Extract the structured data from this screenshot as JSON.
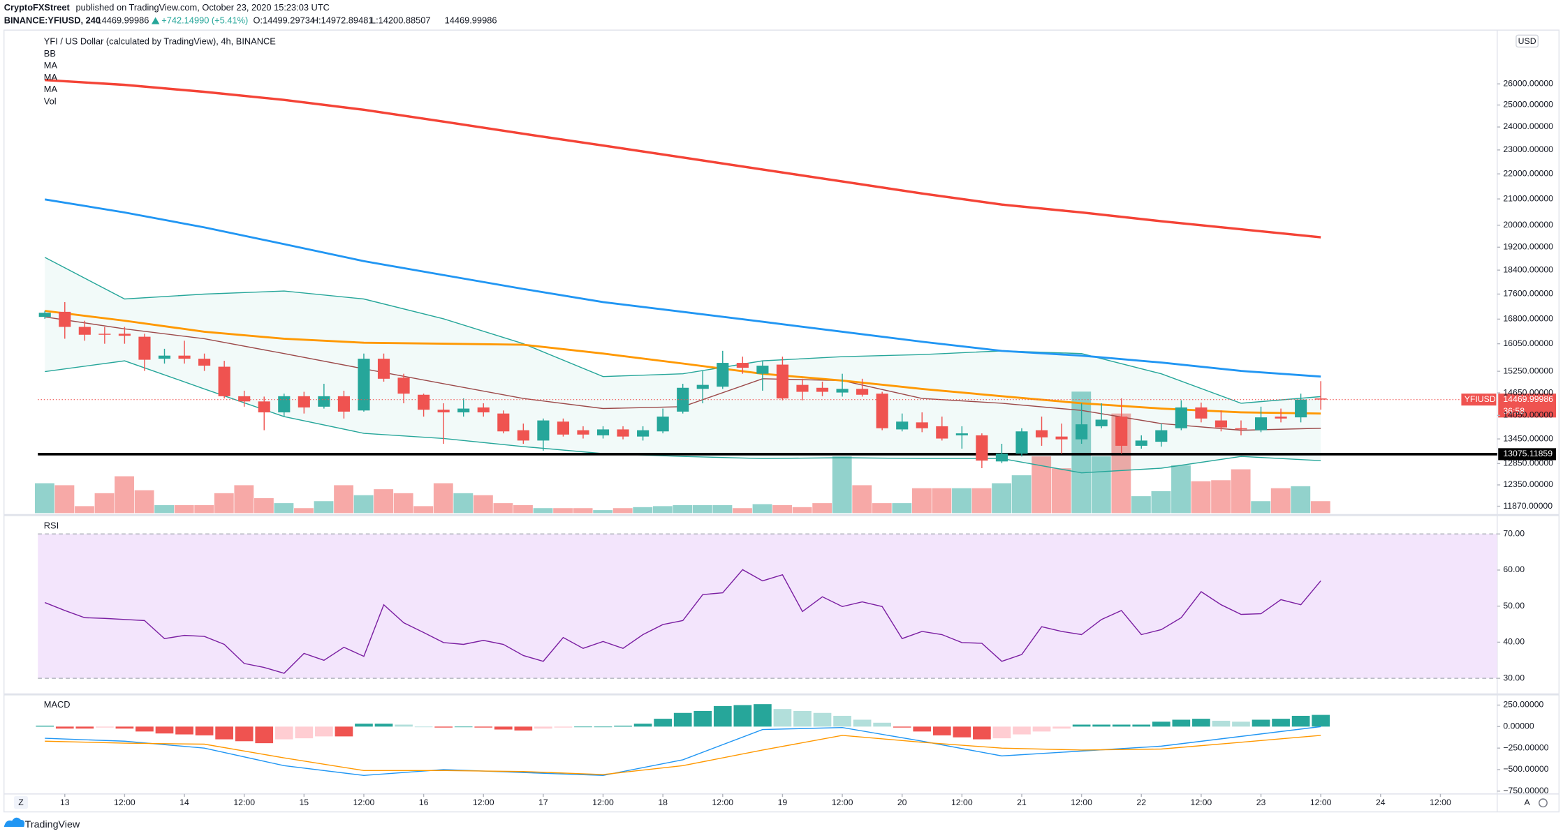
{
  "header": {
    "publisher": "CryptoFXStreet",
    "published": "published on TradingView.com, October 23, 2020 15:23:03 UTC",
    "symbol": "BINANCE:YFIUSD, 240",
    "last": "14469.99986",
    "change": "+742.14990 (+5.41%)",
    "open": "O:14499.29734",
    "high": "H:14972.89481",
    "low": "L:14200.88507",
    "close": "14469.99986"
  },
  "toolbar": {
    "zoom": "Z",
    "auto": "A"
  },
  "footer": {
    "brand": "TradingView"
  },
  "chart_data": [
    {
      "type": "candlestick",
      "title": "YFI / US Dollar (calculated by TradingView), 4h, BINANCE",
      "currency": "USD",
      "symbol": "YFIUSD",
      "countdown": "36:58",
      "up_color": "#26a69a",
      "down_color": "#ef5350",
      "log_scale": true,
      "ylim": [
        11720,
        28730
      ],
      "yticks": [
        {
          "value": 26000,
          "label": "26000.00000"
        },
        {
          "value": 25000,
          "label": "25000.00000"
        },
        {
          "value": 24000,
          "label": "24000.00000"
        },
        {
          "value": 23000,
          "label": "23000.00000"
        },
        {
          "value": 22000,
          "label": "22000.00000"
        },
        {
          "value": 21000,
          "label": "21000.00000"
        },
        {
          "value": 20000,
          "label": "20000.00000"
        },
        {
          "value": 19200,
          "label": "19200.00000"
        },
        {
          "value": 18400,
          "label": "18400.00000"
        },
        {
          "value": 17600,
          "label": "17600.00000"
        },
        {
          "value": 16800,
          "label": "16800.00000"
        },
        {
          "value": 16050,
          "label": "16050.00000"
        },
        {
          "value": 15250,
          "label": "15250.00000"
        },
        {
          "value": 14650,
          "label": "14650.00000"
        },
        {
          "value": 14050,
          "label": "14050.00000"
        },
        {
          "value": 13450,
          "label": "13450.00000"
        },
        {
          "value": 12850,
          "label": "12850.00000"
        },
        {
          "value": 12350,
          "label": "12350.00000"
        },
        {
          "value": 11870,
          "label": "11870.00000"
        }
      ],
      "xlim": [
        -0.35,
        72.85
      ],
      "xticks": [
        {
          "value": 1,
          "label": "13"
        },
        {
          "value": 4,
          "label": "12:00"
        },
        {
          "value": 7,
          "label": "14"
        },
        {
          "value": 10,
          "label": "12:00"
        },
        {
          "value": 13,
          "label": "15"
        },
        {
          "value": 16,
          "label": "12:00"
        },
        {
          "value": 19,
          "label": "16"
        },
        {
          "value": 22,
          "label": "12:00"
        },
        {
          "value": 25,
          "label": "17"
        },
        {
          "value": 28,
          "label": "12:00"
        },
        {
          "value": 31,
          "label": "18"
        },
        {
          "value": 34,
          "label": "12:00"
        },
        {
          "value": 37,
          "label": "19"
        },
        {
          "value": 40,
          "label": "12:00"
        },
        {
          "value": 43,
          "label": "20"
        },
        {
          "value": 46,
          "label": "12:00"
        },
        {
          "value": 49,
          "label": "21"
        },
        {
          "value": 52,
          "label": "12:00"
        },
        {
          "value": 55,
          "label": "22"
        },
        {
          "value": 58,
          "label": "12:00"
        },
        {
          "value": 61,
          "label": "23"
        },
        {
          "value": 64,
          "label": "12:00"
        },
        {
          "value": 67,
          "label": "24"
        },
        {
          "value": 70,
          "label": "12:00"
        }
      ],
      "open": [
        16870,
        17030,
        16560,
        16350,
        16350,
        16260,
        15610,
        15700,
        15610,
        15380,
        14560,
        14420,
        14130,
        14560,
        14280,
        14560,
        14180,
        15610,
        15070,
        14600,
        14200,
        14130,
        14260,
        14100,
        13670,
        13410,
        13890,
        13670,
        13540,
        13690,
        13510,
        13640,
        14150,
        14760,
        14820,
        15490,
        15180,
        15440,
        14870,
        14790,
        14660,
        14760,
        14630,
        13690,
        13870,
        13770,
        13540,
        13540,
        12900,
        13090,
        13670,
        13510,
        13440,
        13770,
        14020,
        13280,
        13380,
        13720,
        14260,
        13920,
        13720,
        13670,
        14020,
        14000,
        14499.29734
      ],
      "high": [
        17060,
        17340,
        16750,
        16560,
        16560,
        16350,
        15900,
        16140,
        15760,
        15550,
        14710,
        14550,
        14630,
        14680,
        14900,
        14710,
        15760,
        15760,
        15180,
        14630,
        14370,
        14500,
        14370,
        14180,
        13840,
        13970,
        13970,
        13770,
        13770,
        13770,
        13770,
        14230,
        14900,
        15260,
        15840,
        15670,
        15550,
        15670,
        15040,
        14960,
        15180,
        15040,
        14680,
        14100,
        14130,
        14020,
        13770,
        13590,
        13330,
        13720,
        14020,
        13840,
        14370,
        14370,
        14500,
        13540,
        13840,
        14450,
        14390,
        14180,
        13920,
        14280,
        14230,
        14630,
        14972.89481
      ],
      "low": [
        16810,
        16200,
        16140,
        16050,
        16050,
        15260,
        15470,
        15470,
        15260,
        14500,
        14280,
        13670,
        14020,
        14100,
        14230,
        13970,
        14150,
        14960,
        14370,
        14020,
        13330,
        14020,
        14020,
        13590,
        13330,
        13160,
        13510,
        13460,
        13460,
        13440,
        13410,
        13590,
        14100,
        14370,
        14760,
        15180,
        14710,
        14450,
        14450,
        14560,
        14550,
        14550,
        13670,
        13640,
        13620,
        13410,
        13210,
        12740,
        12860,
        13020,
        13280,
        13090,
        13330,
        13720,
        13090,
        13210,
        13260,
        13670,
        13870,
        13640,
        13540,
        13620,
        13870,
        13870,
        14200.88507
      ],
      "close": [
        17000,
        16560,
        16320,
        16320,
        16290,
        15580,
        15700,
        15610,
        15410,
        14560,
        14420,
        14130,
        14560,
        14260,
        14560,
        14150,
        15610,
        15040,
        14630,
        14200,
        14130,
        14230,
        14130,
        13640,
        13410,
        13920,
        13560,
        13560,
        13690,
        13510,
        13670,
        14020,
        14790,
        14870,
        15490,
        15350,
        15410,
        14500,
        14680,
        14680,
        14760,
        14600,
        13720,
        13890,
        13720,
        13460,
        13590,
        12920,
        13090,
        13640,
        13490,
        13440,
        13820,
        13940,
        13280,
        13410,
        13670,
        14260,
        13970,
        13740,
        13690,
        14000,
        13970,
        14470,
        14469.99986
      ],
      "bands": {
        "name": "BB",
        "color": "#26a69a",
        "basis_color": "#9c4a4a",
        "upper": [
          18840,
          17440,
          17600,
          17700,
          17440,
          16810,
          16050,
          15100,
          15180,
          15550,
          15670,
          15730,
          15840,
          15760,
          15180,
          14370,
          14550
        ],
        "basis": [
          16870,
          16500,
          16200,
          15760,
          15320,
          14900,
          14500,
          14230,
          14280,
          15040,
          14990,
          14500,
          14370,
          14180,
          13840,
          13670,
          13720
        ],
        "lower": [
          15240,
          15550,
          14760,
          14020,
          13590,
          13460,
          13260,
          13090,
          13020,
          12970,
          12990,
          12970,
          12970,
          12630,
          12740,
          13020,
          12920
        ]
      },
      "overlays": {
        "x": [
          0,
          4,
          8,
          12,
          16,
          20,
          24,
          28,
          32,
          36,
          40,
          44,
          48,
          52,
          56,
          60,
          64
        ],
        "series": [
          {
            "name": "MA",
            "color": "#f44336",
            "values": [
              26190,
              25950,
              25620,
              25240,
              24780,
              24240,
              23700,
              23190,
              22680,
              22180,
              21690,
              21210,
              20780,
              20480,
              20150,
              19850,
              19560
            ]
          },
          {
            "name": "MA",
            "color": "#2196f3",
            "values": [
              20980,
              20480,
              19920,
              19310,
              18710,
              18230,
              17770,
              17340,
              17030,
              16720,
              16410,
              16110,
              15840,
              15700,
              15500,
              15260,
              15100
            ]
          },
          {
            "name": "MA",
            "color": "#ff9800",
            "values": [
              17060,
              16750,
              16410,
              16200,
              16080,
              16050,
              16020,
              15760,
              15470,
              15180,
              14990,
              14760,
              14560,
              14370,
              14230,
              14130,
              14100
            ]
          }
        ]
      },
      "horizontal_line": {
        "value": 13075.11859,
        "color": "#000000"
      }
    },
    {
      "type": "volume",
      "name": "Vol",
      "ylim": [
        0,
        130
      ],
      "values": [
        30,
        28,
        7,
        20,
        37,
        23,
        8,
        8,
        8,
        20,
        28,
        15,
        10,
        5,
        12,
        28,
        18,
        24,
        20,
        7,
        30,
        20,
        18,
        10,
        8,
        5,
        5,
        5,
        3,
        5,
        6,
        7,
        8,
        8,
        8,
        5,
        9,
        8,
        6,
        10,
        57,
        28,
        10,
        10,
        25,
        25,
        25,
        25,
        30,
        38,
        57,
        45,
        122,
        57,
        100,
        17,
        22,
        48,
        32,
        33,
        44,
        12,
        25,
        27,
        12
      ]
    },
    {
      "type": "line",
      "title": "RSI",
      "color": "#7b1fa2",
      "band": [
        30,
        70
      ],
      "band_color": "#f3e5fc",
      "ylim": [
        26.1,
        74.4
      ],
      "yticks": [
        {
          "value": 30,
          "label": "30.00"
        },
        {
          "value": 40,
          "label": "40.00"
        },
        {
          "value": 50,
          "label": "50.00"
        },
        {
          "value": 60,
          "label": "60.00"
        },
        {
          "value": 70,
          "label": "70.00"
        }
      ],
      "values": [
        51.0,
        48.8,
        46.8,
        46.6,
        46.3,
        46.0,
        41.0,
        41.9,
        41.6,
        39.4,
        34.1,
        33.0,
        31.4,
        36.9,
        35.0,
        38.6,
        36.1,
        50.4,
        45.4,
        42.7,
        39.9,
        39.4,
        40.5,
        39.4,
        36.3,
        34.7,
        41.3,
        38.3,
        40.2,
        38.3,
        42.1,
        44.9,
        46.0,
        53.2,
        53.7,
        60.1,
        57.0,
        58.7,
        48.5,
        52.6,
        49.9,
        51.2,
        49.9,
        41.0,
        43.0,
        42.1,
        39.9,
        39.7,
        34.7,
        36.6,
        44.3,
        43.0,
        42.1,
        46.3,
        48.8,
        42.1,
        43.5,
        46.8,
        54.0,
        50.4,
        47.7,
        47.9,
        51.8,
        50.4,
        57.0
      ]
    },
    {
      "type": "macd",
      "title": "MACD",
      "ylim": [
        -760,
        340
      ],
      "yticks": [
        {
          "value": 250,
          "label": "250.00000"
        },
        {
          "value": 0,
          "label": "0.00000"
        },
        {
          "value": -250,
          "label": "−250.00000"
        },
        {
          "value": -500,
          "label": "−500.00000"
        },
        {
          "value": -750,
          "label": "−750.00000"
        }
      ],
      "histogram_colors": [
        "#26a69a",
        "#b2dfdb",
        "#ffcdd2",
        "#ef5350"
      ],
      "histogram": [
        11,
        -23,
        -23,
        -11,
        -23,
        -57,
        -80,
        -91,
        -102,
        -148,
        -170,
        -193,
        -148,
        -136,
        -114,
        -114,
        34,
        34,
        23,
        0,
        -11,
        0,
        -11,
        -34,
        -45,
        -23,
        -11,
        0,
        0,
        11,
        34,
        91,
        159,
        182,
        239,
        250,
        261,
        204,
        182,
        159,
        125,
        80,
        45,
        -11,
        -57,
        -102,
        -125,
        -148,
        -136,
        -91,
        -57,
        -23,
        23,
        23,
        23,
        23,
        57,
        80,
        91,
        68,
        57,
        80,
        91,
        125,
        136
      ],
      "x": [
        0,
        4,
        8,
        12,
        16,
        20,
        24,
        28,
        32,
        36,
        40,
        44,
        48,
        52,
        56,
        60,
        64
      ],
      "series": [
        {
          "color": "#2196f3",
          "values": [
            -136,
            -170,
            -250,
            -454,
            -568,
            -500,
            -534,
            -568,
            -386,
            -34,
            -11,
            -170,
            -341,
            -284,
            -227,
            -114,
            0
          ]
        },
        {
          "color": "#ff9800",
          "values": [
            -170,
            -193,
            -204,
            -364,
            -511,
            -511,
            -523,
            -557,
            -454,
            -273,
            -102,
            -182,
            -250,
            -273,
            -261,
            -182,
            -102
          ]
        }
      ]
    }
  ]
}
